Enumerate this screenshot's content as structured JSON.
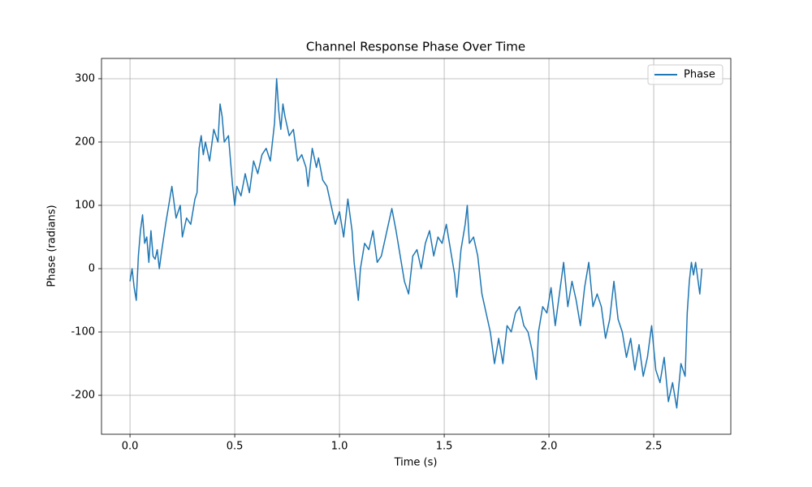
{
  "chart_data": {
    "type": "line",
    "title": "Channel Response Phase Over Time",
    "x_label": "Time (s)",
    "y_label": "Phase (radians)",
    "x": [
      0.0,
      0.01,
      0.02,
      0.03,
      0.04,
      0.05,
      0.06,
      0.07,
      0.08,
      0.09,
      0.1,
      0.11,
      0.12,
      0.13,
      0.14,
      0.15,
      0.17,
      0.19,
      0.2,
      0.22,
      0.24,
      0.25,
      0.27,
      0.29,
      0.31,
      0.32,
      0.33,
      0.34,
      0.35,
      0.36,
      0.38,
      0.4,
      0.42,
      0.43,
      0.44,
      0.45,
      0.47,
      0.49,
      0.5,
      0.51,
      0.53,
      0.55,
      0.57,
      0.59,
      0.61,
      0.63,
      0.65,
      0.67,
      0.69,
      0.7,
      0.71,
      0.72,
      0.73,
      0.74,
      0.76,
      0.78,
      0.8,
      0.82,
      0.84,
      0.85,
      0.87,
      0.89,
      0.9,
      0.92,
      0.94,
      0.96,
      0.98,
      1.0,
      1.02,
      1.04,
      1.06,
      1.07,
      1.08,
      1.09,
      1.1,
      1.12,
      1.14,
      1.16,
      1.18,
      1.2,
      1.22,
      1.24,
      1.25,
      1.27,
      1.29,
      1.31,
      1.33,
      1.35,
      1.37,
      1.39,
      1.41,
      1.43,
      1.45,
      1.47,
      1.49,
      1.51,
      1.53,
      1.55,
      1.56,
      1.58,
      1.6,
      1.61,
      1.62,
      1.64,
      1.66,
      1.68,
      1.7,
      1.72,
      1.74,
      1.76,
      1.78,
      1.8,
      1.82,
      1.84,
      1.86,
      1.88,
      1.9,
      1.92,
      1.94,
      1.95,
      1.97,
      1.99,
      2.01,
      2.03,
      2.05,
      2.07,
      2.09,
      2.11,
      2.13,
      2.15,
      2.17,
      2.19,
      2.21,
      2.23,
      2.25,
      2.27,
      2.29,
      2.31,
      2.33,
      2.35,
      2.37,
      2.39,
      2.41,
      2.43,
      2.45,
      2.47,
      2.49,
      2.51,
      2.53,
      2.55,
      2.57,
      2.59,
      2.61,
      2.63,
      2.65,
      2.66,
      2.67,
      2.68,
      2.69,
      2.7,
      2.72,
      2.73
    ],
    "series": [
      {
        "name": "Phase",
        "color": "#1f77b4",
        "values": [
          -20,
          0,
          -30,
          -50,
          20,
          60,
          85,
          40,
          50,
          10,
          60,
          20,
          15,
          30,
          0,
          25,
          70,
          110,
          130,
          80,
          100,
          50,
          80,
          70,
          110,
          120,
          190,
          210,
          180,
          200,
          170,
          220,
          200,
          260,
          240,
          200,
          210,
          130,
          100,
          130,
          115,
          150,
          120,
          170,
          150,
          180,
          190,
          170,
          230,
          300,
          250,
          220,
          260,
          240,
          210,
          220,
          170,
          180,
          160,
          130,
          190,
          160,
          175,
          140,
          130,
          100,
          70,
          90,
          50,
          110,
          60,
          10,
          -20,
          -50,
          0,
          40,
          30,
          60,
          10,
          20,
          50,
          80,
          95,
          60,
          20,
          -20,
          -40,
          20,
          30,
          0,
          40,
          60,
          20,
          50,
          40,
          70,
          30,
          -10,
          -45,
          30,
          70,
          100,
          40,
          50,
          20,
          -40,
          -70,
          -100,
          -150,
          -110,
          -150,
          -90,
          -100,
          -70,
          -60,
          -90,
          -100,
          -130,
          -175,
          -100,
          -60,
          -70,
          -30,
          -90,
          -40,
          10,
          -60,
          -20,
          -50,
          -90,
          -30,
          10,
          -60,
          -40,
          -60,
          -110,
          -80,
          -20,
          -80,
          -100,
          -140,
          -110,
          -160,
          -120,
          -170,
          -140,
          -90,
          -160,
          -180,
          -140,
          -210,
          -180,
          -220,
          -150,
          -170,
          -70,
          -20,
          10,
          -10,
          10,
          -40,
          0
        ]
      }
    ],
    "xlim": [
      -0.136,
      2.868
    ],
    "ylim": [
      -261.5,
      332
    ],
    "xticks": [
      {
        "value": 0,
        "label": "0.0"
      },
      {
        "value": 0.5,
        "label": "0.5"
      },
      {
        "value": 1,
        "label": "1.0"
      },
      {
        "value": 1.5,
        "label": "1.5"
      },
      {
        "value": 2,
        "label": "2.0"
      },
      {
        "value": 2.5,
        "label": "2.5"
      }
    ],
    "yticks": [
      -200,
      -100,
      0,
      100,
      200,
      300
    ],
    "grid": true,
    "legend": "upper right"
  }
}
